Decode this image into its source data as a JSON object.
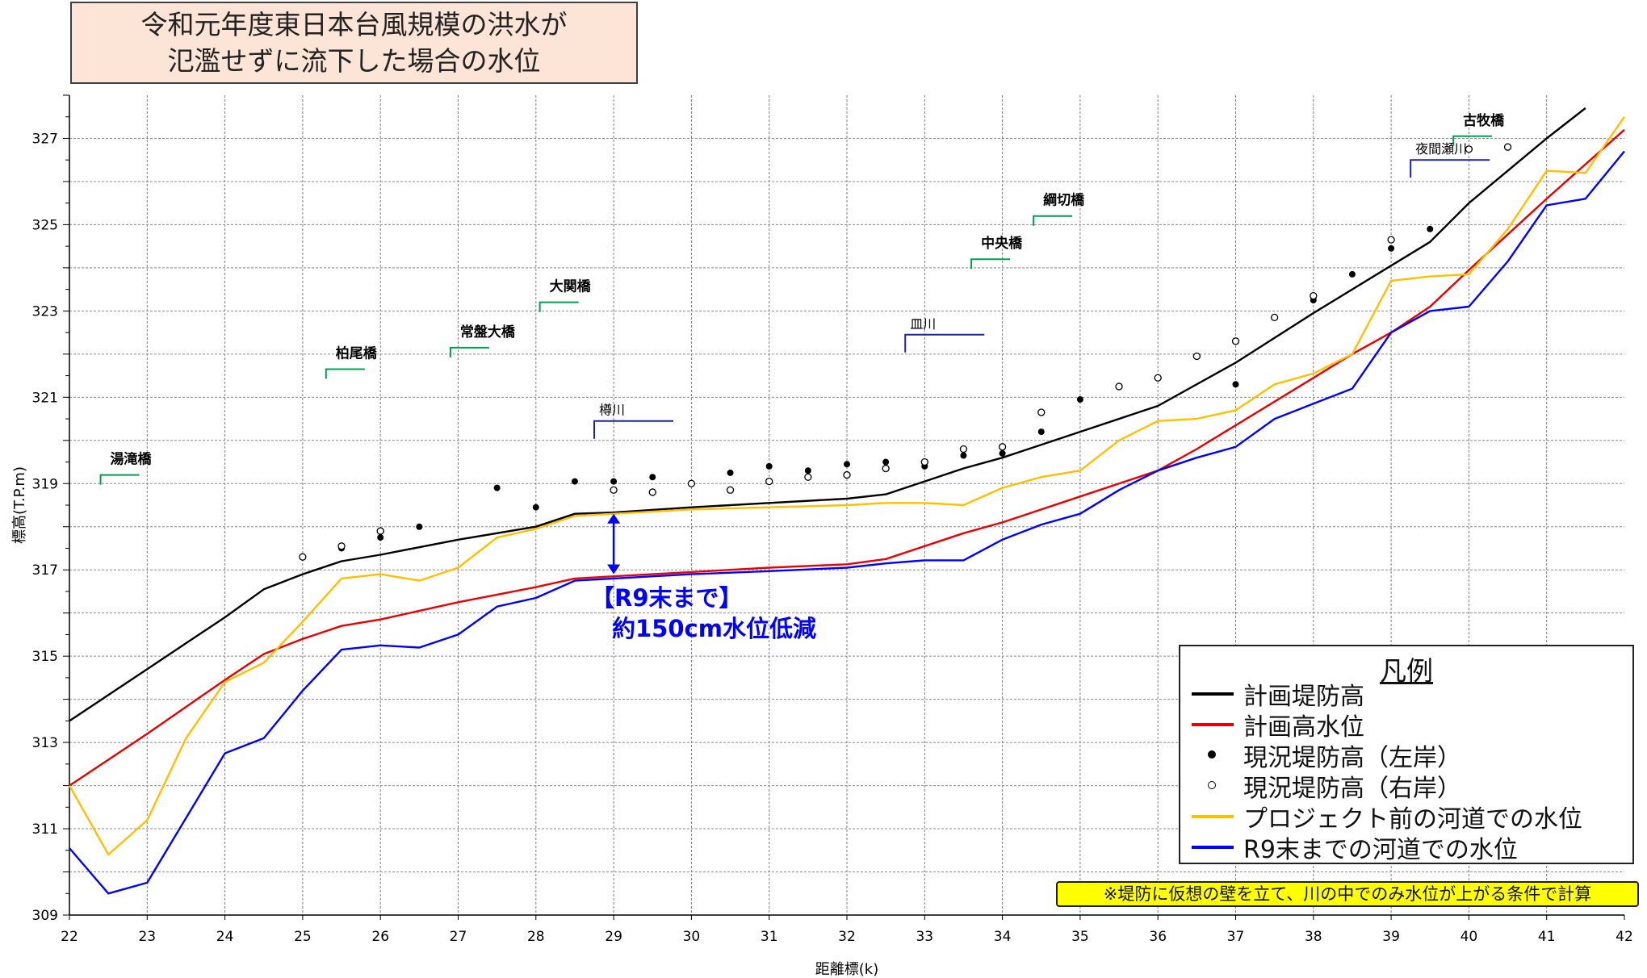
{
  "title_lines": [
    "令和元年度東日本台風規模の洪水が",
    "氾濫せずに流下した場合の水位"
  ],
  "chart_data": {
    "type": "line",
    "xlabel": "距離標(k)",
    "ylabel": "標高(T.P.m)",
    "xlim": [
      22,
      42
    ],
    "ylim": [
      309,
      328
    ],
    "x_ticks": [
      "22",
      "23",
      "24",
      "25",
      "26",
      "27",
      "28",
      "29",
      "30",
      "31",
      "32",
      "33",
      "34",
      "35",
      "36",
      "37",
      "38",
      "39",
      "40",
      "41",
      "42"
    ],
    "y_ticks": [
      "309",
      "311",
      "313",
      "315",
      "317",
      "319",
      "321",
      "323",
      "325",
      "327"
    ],
    "grid": true,
    "series": [
      {
        "name": "計画堤防高",
        "kind": "line",
        "color": "#000000",
        "points": [
          [
            22,
            313.5
          ],
          [
            23,
            314.7
          ],
          [
            24,
            315.9
          ],
          [
            24.5,
            316.55
          ],
          [
            25,
            316.9
          ],
          [
            25.5,
            317.2
          ],
          [
            26,
            317.35
          ],
          [
            27,
            317.7
          ],
          [
            28,
            318.0
          ],
          [
            28.5,
            318.3
          ],
          [
            29,
            318.33
          ],
          [
            30,
            318.45
          ],
          [
            31,
            318.55
          ],
          [
            32,
            318.65
          ],
          [
            32.5,
            318.75
          ],
          [
            33,
            319.05
          ],
          [
            33.5,
            319.35
          ],
          [
            34,
            319.6
          ],
          [
            35,
            320.2
          ],
          [
            36,
            320.8
          ],
          [
            37,
            321.8
          ],
          [
            38,
            322.95
          ],
          [
            39,
            324.05
          ],
          [
            39.5,
            324.6
          ],
          [
            40,
            325.5
          ],
          [
            41,
            327.0
          ],
          [
            41.5,
            327.7
          ]
        ]
      },
      {
        "name": "計画高水位",
        "kind": "line",
        "color": "#e60000",
        "points": [
          [
            22,
            312.0
          ],
          [
            23,
            313.2
          ],
          [
            24,
            314.45
          ],
          [
            24.5,
            315.05
          ],
          [
            25,
            315.4
          ],
          [
            25.5,
            315.7
          ],
          [
            26,
            315.85
          ],
          [
            27,
            316.25
          ],
          [
            28,
            316.6
          ],
          [
            28.5,
            316.8
          ],
          [
            29,
            316.85
          ],
          [
            30,
            316.95
          ],
          [
            31,
            317.05
          ],
          [
            32,
            317.13
          ],
          [
            32.5,
            317.25
          ],
          [
            33,
            317.55
          ],
          [
            33.5,
            317.85
          ],
          [
            34,
            318.1
          ],
          [
            35,
            318.7
          ],
          [
            36,
            319.3
          ],
          [
            36.5,
            319.8
          ],
          [
            37,
            320.35
          ],
          [
            38,
            321.45
          ],
          [
            38.5,
            322.0
          ],
          [
            39,
            322.5
          ],
          [
            39.5,
            323.1
          ],
          [
            40,
            323.95
          ],
          [
            41,
            325.6
          ],
          [
            42,
            327.2
          ]
        ]
      },
      {
        "name": "現況堤防高（左岸）",
        "kind": "dots",
        "color": "#000000",
        "points": [
          [
            25.5,
            317.5
          ],
          [
            26,
            317.75
          ],
          [
            26.5,
            318.0
          ],
          [
            27.5,
            318.9
          ],
          [
            28,
            318.45
          ],
          [
            28.5,
            319.05
          ],
          [
            29,
            319.05
          ],
          [
            29.5,
            319.15
          ],
          [
            30.5,
            319.25
          ],
          [
            31,
            319.4
          ],
          [
            31.5,
            319.3
          ],
          [
            32,
            319.45
          ],
          [
            32.5,
            319.5
          ],
          [
            33,
            319.4
          ],
          [
            33.5,
            319.65
          ],
          [
            34,
            319.7
          ],
          [
            34.5,
            320.2
          ],
          [
            35,
            320.95
          ],
          [
            37,
            321.3
          ],
          [
            38,
            323.25
          ],
          [
            38.5,
            323.85
          ],
          [
            39,
            324.45
          ],
          [
            39.5,
            324.9
          ]
        ]
      },
      {
        "name": "現況堤防高（右岸）",
        "kind": "circles",
        "color": "#000000",
        "points": [
          [
            25,
            317.3
          ],
          [
            25.5,
            317.55
          ],
          [
            26,
            317.9
          ],
          [
            29,
            318.85
          ],
          [
            29.5,
            318.8
          ],
          [
            30,
            319.0
          ],
          [
            30.5,
            318.85
          ],
          [
            31,
            319.05
          ],
          [
            31.5,
            319.15
          ],
          [
            32,
            319.2
          ],
          [
            32.5,
            319.35
          ],
          [
            33,
            319.5
          ],
          [
            33.5,
            319.8
          ],
          [
            34,
            319.85
          ],
          [
            34.5,
            320.65
          ],
          [
            35.5,
            321.25
          ],
          [
            36,
            321.45
          ],
          [
            36.5,
            321.95
          ],
          [
            37,
            322.3
          ],
          [
            37.5,
            322.85
          ],
          [
            38,
            323.35
          ],
          [
            39,
            324.65
          ],
          [
            40,
            326.75
          ],
          [
            40.5,
            326.8
          ]
        ]
      },
      {
        "name": "プロジェクト前の河道での水位",
        "kind": "line",
        "color": "#ffc000",
        "points": [
          [
            22,
            312.0
          ],
          [
            22.5,
            310.4
          ],
          [
            23,
            311.2
          ],
          [
            23.5,
            313.1
          ],
          [
            24,
            314.4
          ],
          [
            24.5,
            314.85
          ],
          [
            25,
            315.8
          ],
          [
            25.5,
            316.8
          ],
          [
            26,
            316.9
          ],
          [
            26.5,
            316.75
          ],
          [
            27,
            317.05
          ],
          [
            27.5,
            317.75
          ],
          [
            28,
            317.95
          ],
          [
            28.5,
            318.25
          ],
          [
            29,
            318.3
          ],
          [
            30,
            318.4
          ],
          [
            31,
            318.45
          ],
          [
            32,
            318.5
          ],
          [
            32.5,
            318.55
          ],
          [
            33,
            318.55
          ],
          [
            33.5,
            318.5
          ],
          [
            34,
            318.9
          ],
          [
            34.5,
            319.15
          ],
          [
            35,
            319.3
          ],
          [
            35.5,
            320.0
          ],
          [
            36,
            320.45
          ],
          [
            36.5,
            320.5
          ],
          [
            37,
            320.7
          ],
          [
            37.5,
            321.3
          ],
          [
            38,
            321.55
          ],
          [
            38.5,
            322.0
          ],
          [
            39,
            323.7
          ],
          [
            39.5,
            323.8
          ],
          [
            40,
            323.85
          ],
          [
            40.5,
            324.9
          ],
          [
            41,
            326.25
          ],
          [
            41.5,
            326.2
          ],
          [
            42,
            327.5
          ]
        ]
      },
      {
        "name": "R9末までの河道での水位",
        "kind": "line",
        "color": "#0000ff",
        "points": [
          [
            22,
            310.55
          ],
          [
            22.5,
            309.5
          ],
          [
            23,
            309.75
          ],
          [
            23.5,
            311.25
          ],
          [
            24,
            312.75
          ],
          [
            24.5,
            313.1
          ],
          [
            25,
            314.2
          ],
          [
            25.5,
            315.15
          ],
          [
            26,
            315.25
          ],
          [
            26.5,
            315.2
          ],
          [
            27,
            315.5
          ],
          [
            27.5,
            316.15
          ],
          [
            28,
            316.35
          ],
          [
            28.5,
            316.75
          ],
          [
            29,
            316.8
          ],
          [
            30,
            316.9
          ],
          [
            31,
            316.97
          ],
          [
            32,
            317.05
          ],
          [
            32.5,
            317.15
          ],
          [
            33,
            317.22
          ],
          [
            33.5,
            317.22
          ],
          [
            34,
            317.7
          ],
          [
            34.5,
            318.05
          ],
          [
            35,
            318.3
          ],
          [
            35.5,
            318.85
          ],
          [
            36,
            319.3
          ],
          [
            36.5,
            319.6
          ],
          [
            37,
            319.85
          ],
          [
            37.5,
            320.5
          ],
          [
            38,
            320.85
          ],
          [
            38.5,
            321.2
          ],
          [
            39,
            322.5
          ],
          [
            39.5,
            323.0
          ],
          [
            40,
            323.1
          ],
          [
            40.5,
            324.15
          ],
          [
            41,
            325.45
          ],
          [
            41.5,
            325.6
          ],
          [
            42,
            326.7
          ]
        ]
      }
    ],
    "annotations": [
      {
        "text": "湯滝橋",
        "kind": "bridge",
        "x": 22.4,
        "y": 319.2
      },
      {
        "text": "柏尾橋",
        "kind": "bridge",
        "x": 25.3,
        "y": 321.65
      },
      {
        "text": "常盤大橋",
        "kind": "bridge",
        "x": 26.9,
        "y": 322.15
      },
      {
        "text": "大関橋",
        "kind": "bridge",
        "x": 28.05,
        "y": 323.2
      },
      {
        "text": "中央橋",
        "kind": "bridge",
        "x": 33.6,
        "y": 324.2
      },
      {
        "text": "綱切橋",
        "kind": "bridge",
        "x": 34.4,
        "y": 325.2
      },
      {
        "text": "古牧橋",
        "kind": "bridge",
        "x": 39.8,
        "y": 327.05
      },
      {
        "text": "樽川",
        "kind": "tributary",
        "x": 28.75,
        "y": 320.45
      },
      {
        "text": "皿川",
        "kind": "tributary",
        "x": 32.75,
        "y": 322.45
      },
      {
        "text": "夜間瀬川",
        "kind": "tributary",
        "x": 39.25,
        "y": 326.5
      }
    ],
    "arrow": {
      "x": 29,
      "y_top": 318.3,
      "y_bottom": 316.9
    },
    "annotation_text": [
      "【R9末まで】",
      "約150cm水位低減"
    ]
  },
  "legend_title": "凡例",
  "footnote": "※堤防に仮想の壁を立て、川の中でのみ水位が上がる条件で計算"
}
